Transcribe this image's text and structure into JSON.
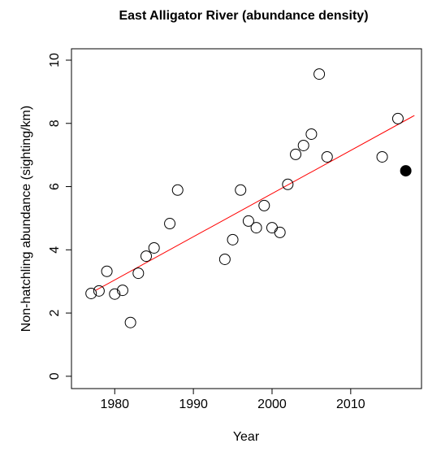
{
  "chart_data": {
    "type": "scatter",
    "title": "East Alligator River (abundance density)",
    "x_label": "Year",
    "y_label": "Non-hatchling abundance (sighting/km)",
    "xlim": [
      1974.5,
      2019.0
    ],
    "ylim": [
      -0.39,
      10.36
    ],
    "xticks": [
      1980,
      1990,
      2000,
      2010
    ],
    "yticks": [
      0,
      2,
      4,
      6,
      8,
      10
    ],
    "series": [
      {
        "color": "#000000",
        "marker": "open",
        "x": [
          1977,
          1978,
          1979,
          1980,
          1981,
          1982,
          1983,
          1984,
          1985,
          1987,
          1988,
          1994,
          1995,
          1996,
          1997,
          1998,
          1999,
          2000,
          2001,
          2002,
          2003,
          2004,
          2005,
          2006,
          2007,
          2014,
          2016
        ],
        "values": [
          2.62,
          2.7,
          3.32,
          2.6,
          2.72,
          1.7,
          3.26,
          3.8,
          4.06,
          4.83,
          5.89,
          3.7,
          4.32,
          5.89,
          4.91,
          4.7,
          5.4,
          4.7,
          4.55,
          6.07,
          7.02,
          7.3,
          7.66,
          9.56,
          6.94,
          6.94,
          8.15
        ]
      },
      {
        "color": "#000000",
        "marker": "filled",
        "x": [
          2017
        ],
        "values": [
          6.5
        ]
      }
    ],
    "trend": {
      "color": "#ff0000",
      "x": [
        1977.6,
        2018.1
      ],
      "values": [
        2.72,
        8.25
      ]
    }
  }
}
